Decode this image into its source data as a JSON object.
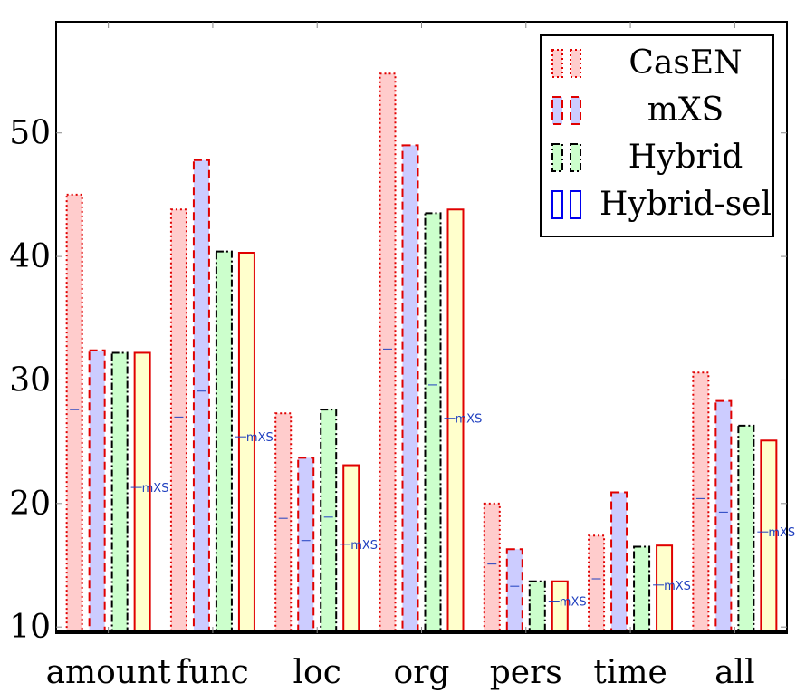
{
  "chart_data": {
    "type": "bar",
    "title": "",
    "xlabel": "",
    "ylabel": "",
    "categories": [
      "amount",
      "func",
      "loc",
      "org",
      "pers",
      "time",
      "all"
    ],
    "ylim": [
      9.5,
      59
    ],
    "yticks": [
      10,
      20,
      30,
      40,
      50
    ],
    "grid": false,
    "legend_position": "top-right",
    "series": [
      {
        "name": "CasEN",
        "values": [
          45.0,
          43.8,
          27.3,
          54.8,
          20.0,
          17.4,
          30.6
        ],
        "fill": "#ffcccc",
        "stroke": "#e00000",
        "dash": "dotted"
      },
      {
        "name": "mXS",
        "values": [
          32.4,
          47.8,
          23.7,
          49.0,
          16.3,
          20.9,
          28.3
        ],
        "fill": "#ccccff",
        "stroke": "#e00000",
        "dash": "dashed"
      },
      {
        "name": "Hybrid",
        "values": [
          32.2,
          40.4,
          27.6,
          43.5,
          13.7,
          16.5,
          26.3
        ],
        "fill": "#ccffcc",
        "stroke": "#000000",
        "dash": "dashdot"
      },
      {
        "name": "Hybrid-sel",
        "values": [
          32.2,
          40.3,
          23.1,
          43.8,
          13.7,
          16.6,
          25.1
        ],
        "fill": "#ffffcc",
        "stroke": "#e00000",
        "dash": "solid"
      }
    ],
    "annotations": [
      {
        "label": "mXS",
        "category": "amount",
        "value": 21.3
      },
      {
        "label": "mXS",
        "category": "func",
        "value": 25.4
      },
      {
        "label": "mXS",
        "category": "loc",
        "value": 16.7
      },
      {
        "label": "mXS",
        "category": "org",
        "value": 26.9
      },
      {
        "label": "mXS",
        "category": "pers",
        "value": 12.1
      },
      {
        "label": "mXS",
        "category": "time",
        "value": 13.4
      },
      {
        "label": "mXS",
        "category": "all",
        "value": 17.7
      }
    ],
    "markers": {
      "CasEN": [
        27.6,
        27.0,
        18.8,
        32.5,
        15.1,
        13.9,
        20.4
      ],
      "mXS": [
        null,
        29.1,
        17.0,
        null,
        13.3,
        null,
        19.3
      ],
      "Hybrid": [
        null,
        null,
        18.9,
        29.6,
        null,
        null,
        null
      ]
    }
  },
  "legend_labels": [
    "CasEN",
    "mXS",
    "Hybrid",
    "Hybrid-sel"
  ]
}
